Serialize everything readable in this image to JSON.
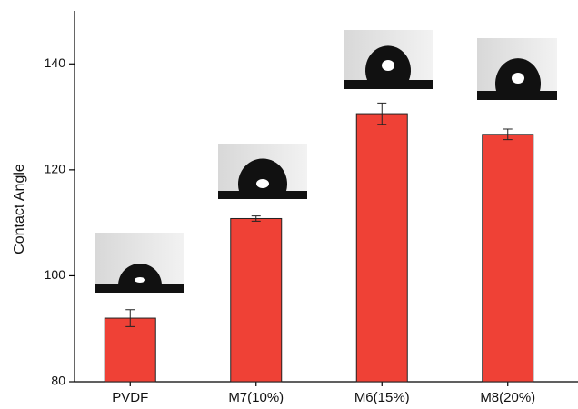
{
  "chart_data": {
    "type": "bar",
    "y_label": "Contact Angle",
    "categories": [
      "PVDF",
      "M7(10%)",
      "M6(15%)",
      "M8(20%)"
    ],
    "values": [
      92,
      110.8,
      130.6,
      126.7
    ],
    "errors": [
      1.6,
      0.5,
      2.0,
      1.0
    ],
    "color": "#ef4136",
    "ylim": [
      80,
      150
    ],
    "yticks": [
      80,
      100,
      120,
      140
    ]
  }
}
